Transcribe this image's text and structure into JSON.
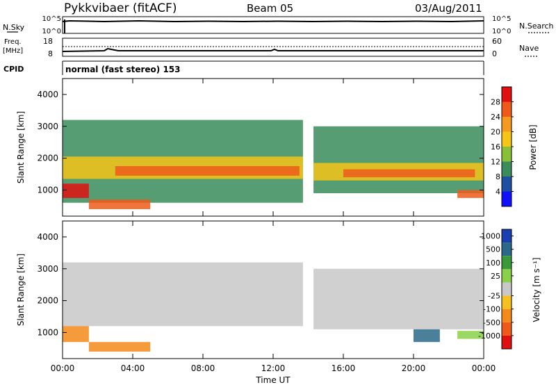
{
  "header": {
    "title": "Pykkvibaer (fitACF)",
    "beam": "Beam 05",
    "date": "03/Aug/2011"
  },
  "top_panels": {
    "nsky": {
      "label": "N.Sky",
      "left_ticks": [
        "10^5",
        "10^0"
      ],
      "right_ticks": [
        "10^5",
        "10^0"
      ],
      "right_label": "N.Search"
    },
    "freq": {
      "label_line1": "Freq.",
      "label_line2": "[MHz]",
      "left_ticks": [
        "18",
        "8"
      ],
      "right_ticks": [
        "60",
        "0"
      ],
      "right_label": "Nave"
    },
    "cpid": {
      "label": "CPID",
      "value": "normal (fast stereo) 153"
    }
  },
  "chart_data": [
    {
      "type": "heatmap",
      "name": "power",
      "ylabel": "Slant Range [km]",
      "xlabel": "",
      "yticks": [
        "1000",
        "2000",
        "3000",
        "4000"
      ],
      "ylim": [
        180,
        4500
      ],
      "colorbar_label": "Power [dB]",
      "colorbar_ticks": [
        "4",
        "8",
        "12",
        "16",
        "20",
        "24",
        "28"
      ],
      "colors": [
        "#1010ff",
        "#1f4fa0",
        "#3a8c5a",
        "#88c038",
        "#f5c518",
        "#f59a20",
        "#ef5a1a",
        "#e01010"
      ],
      "bands": [
        {
          "t0": 0.0,
          "t1": 13.7,
          "r0": 600,
          "r1": 3200,
          "level": 2
        },
        {
          "t0": 0.0,
          "t1": 13.7,
          "r0": 1350,
          "r1": 2050,
          "level": 4
        },
        {
          "t0": 3.0,
          "t1": 13.5,
          "r0": 1450,
          "r1": 1750,
          "level": 6
        },
        {
          "t0": 0.0,
          "t1": 1.5,
          "r0": 750,
          "r1": 1200,
          "level": 7
        },
        {
          "t0": 1.5,
          "t1": 5.0,
          "r0": 400,
          "r1": 700,
          "level": 6
        },
        {
          "t0": 14.3,
          "t1": 24.0,
          "r0": 900,
          "r1": 3000,
          "level": 2
        },
        {
          "t0": 14.3,
          "t1": 24.0,
          "r0": 1300,
          "r1": 1850,
          "level": 4
        },
        {
          "t0": 16.0,
          "t1": 23.5,
          "r0": 1400,
          "r1": 1650,
          "level": 6
        },
        {
          "t0": 22.5,
          "t1": 24.0,
          "r0": 750,
          "r1": 1000,
          "level": 6
        }
      ]
    },
    {
      "type": "heatmap",
      "name": "velocity",
      "ylabel": "Slant Range [km]",
      "xlabel": "Time UT",
      "xticks": [
        "00:00",
        "04:00",
        "08:00",
        "12:00",
        "16:00",
        "20:00",
        "00:00"
      ],
      "yticks": [
        "1000",
        "2000",
        "3000",
        "4000"
      ],
      "ylim": [
        180,
        4500
      ],
      "colorbar_label": "Velocity [m s⁻¹]",
      "colorbar_ticks": [
        "1000",
        "500",
        "100",
        "25",
        "-25",
        "-100",
        "-500",
        "-1000"
      ],
      "colors": [
        "#1a3fb0",
        "#2a6a88",
        "#3a9a3a",
        "#8ad048",
        "#c8c8c8",
        "#f5c020",
        "#f58a1a",
        "#ef5a1a",
        "#e01010"
      ],
      "bands": [
        {
          "t0": 0.0,
          "t1": 13.7,
          "r0": 1200,
          "r1": 3200,
          "level": 4
        },
        {
          "t0": 0.0,
          "t1": 1.5,
          "r0": 700,
          "r1": 1200,
          "level": 6
        },
        {
          "t0": 1.5,
          "t1": 5.0,
          "r0": 400,
          "r1": 700,
          "level": 6
        },
        {
          "t0": 14.3,
          "t1": 24.0,
          "r0": 1100,
          "r1": 3000,
          "level": 4
        },
        {
          "t0": 20.0,
          "t1": 21.5,
          "r0": 700,
          "r1": 1100,
          "level": 1
        },
        {
          "t0": 22.5,
          "t1": 24.0,
          "r0": 800,
          "r1": 1050,
          "level": 3
        }
      ]
    }
  ]
}
